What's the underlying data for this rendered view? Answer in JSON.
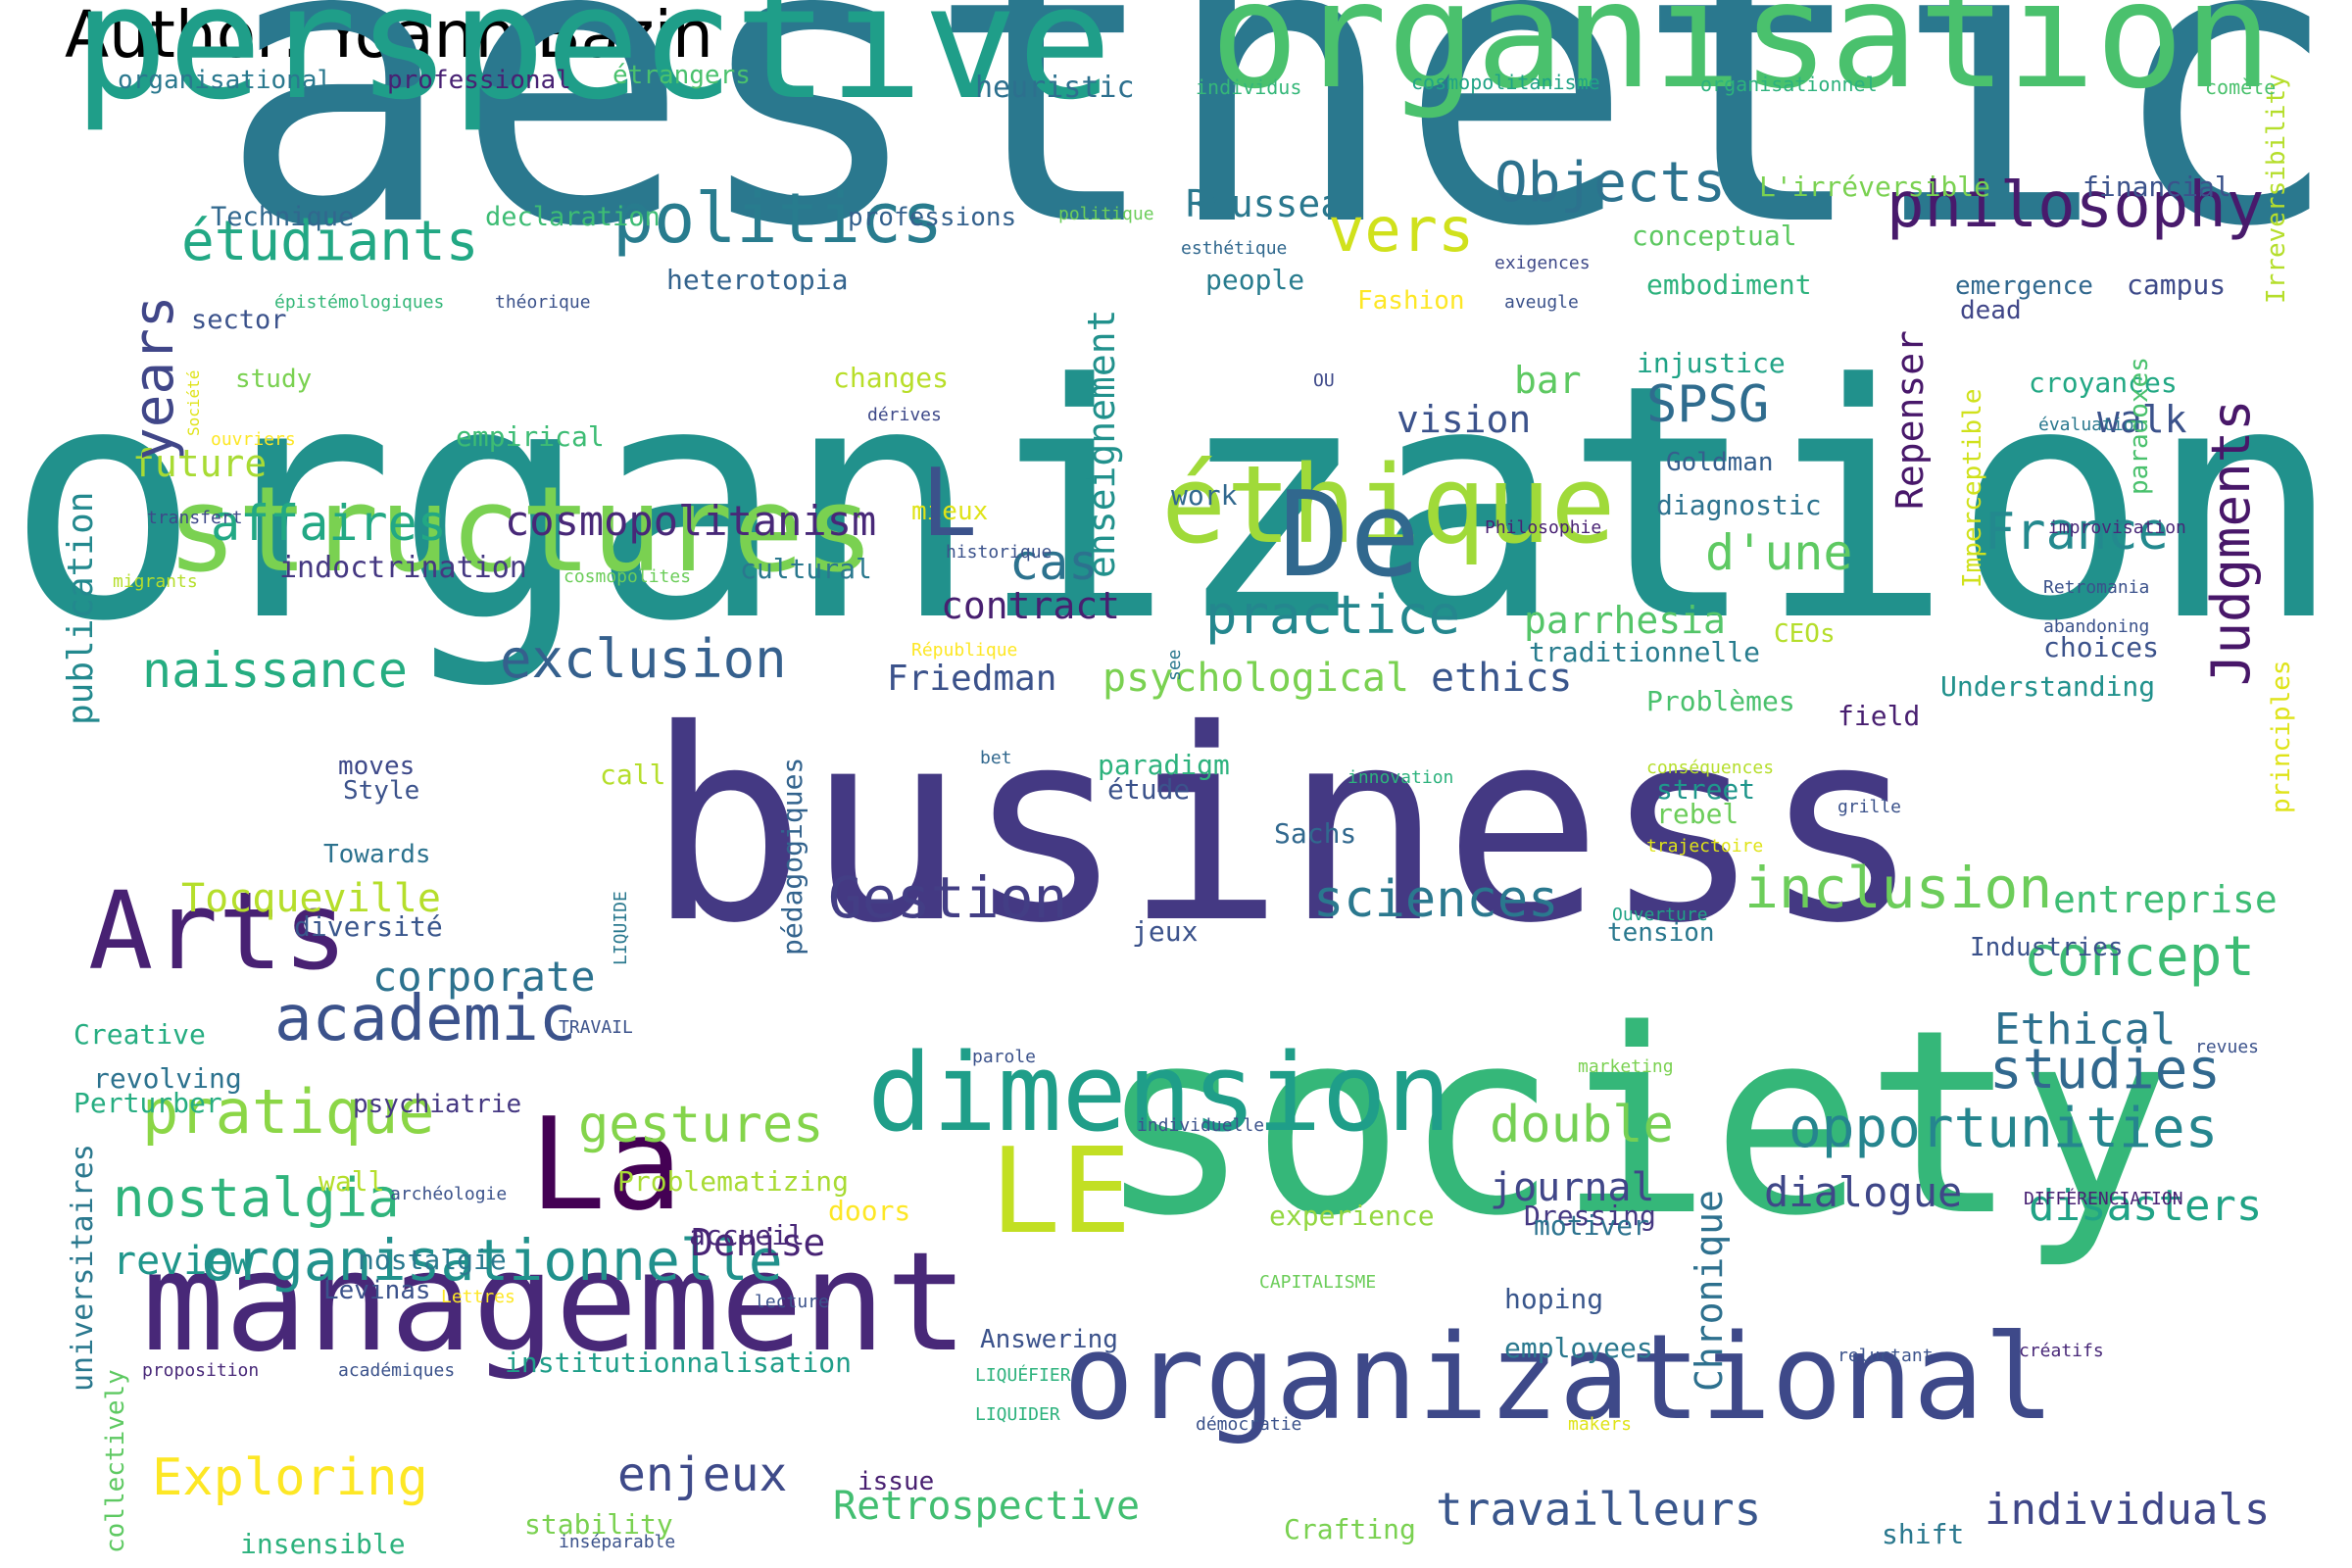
{
  "header": {
    "author": "Author: Yoann Bazin"
  },
  "words": [
    {
      "text": "aesthetic",
      "color": "#2a788e"
    },
    {
      "text": "organization",
      "color": "#21918c"
    },
    {
      "text": "business",
      "color": "#443983"
    },
    {
      "text": "society",
      "color": "#35b779"
    },
    {
      "text": "perspective",
      "color": "#1f9e89"
    },
    {
      "text": "organisation",
      "color": "#4ac16d"
    },
    {
      "text": "management",
      "color": "#482878"
    },
    {
      "text": "organizational",
      "color": "#3e4989"
    },
    {
      "text": "structures",
      "color": "#7ad151"
    },
    {
      "text": "éthique",
      "color": "#a0da39"
    },
    {
      "text": "dimension",
      "color": "#1f9e89"
    },
    {
      "text": "Arts",
      "color": "#482173"
    },
    {
      "text": "La",
      "color": "#440154"
    },
    {
      "text": "LE",
      "color": "#c2df23"
    },
    {
      "text": "De",
      "color": "#31688e"
    },
    {
      "text": "politics",
      "color": "#287c8e"
    },
    {
      "text": "philosophy",
      "color": "#481a6c"
    },
    {
      "text": "vers",
      "color": "#d0e11c"
    },
    {
      "text": "Objects",
      "color": "#2c728e"
    },
    {
      "text": "étudiants",
      "color": "#22a884"
    },
    {
      "text": "academic",
      "color": "#3b528b"
    },
    {
      "text": "pratique",
      "color": "#8bd646"
    },
    {
      "text": "organisationnelle",
      "color": "#21918c"
    },
    {
      "text": "nostalgia",
      "color": "#2fb47c"
    },
    {
      "text": "opportunities",
      "color": "#25858e"
    },
    {
      "text": "Gestion",
      "color": "#433e85"
    },
    {
      "text": "inclusion",
      "color": "#6ccd5a"
    },
    {
      "text": "sciences",
      "color": "#2a788e"
    },
    {
      "text": "concept",
      "color": "#3dbc74"
    },
    {
      "text": "studies",
      "color": "#31688e"
    },
    {
      "text": "practice",
      "color": "#24878e"
    },
    {
      "text": "exclusion",
      "color": "#35608d"
    },
    {
      "text": "naissance",
      "color": "#26ad81"
    },
    {
      "text": "affaires",
      "color": "#22a884"
    },
    {
      "text": "cosmopolitanism",
      "color": "#482878"
    },
    {
      "text": "France",
      "color": "#23898e"
    },
    {
      "text": "d'une",
      "color": "#5ec962"
    },
    {
      "text": "cas",
      "color": "#2c728e"
    },
    {
      "text": "SPSG",
      "color": "#2f6c8e"
    },
    {
      "text": "Rousseau",
      "color": "#2a788e"
    },
    {
      "text": "parrhesia",
      "color": "#54c568"
    },
    {
      "text": "ethics",
      "color": "#39568c"
    },
    {
      "text": "psychological",
      "color": "#7ad151"
    },
    {
      "text": "gestures",
      "color": "#84d44b"
    },
    {
      "text": "double",
      "color": "#75d054"
    },
    {
      "text": "disasters",
      "color": "#20a386"
    },
    {
      "text": "dialogue",
      "color": "#3f4788"
    },
    {
      "text": "journal",
      "color": "#404688"
    },
    {
      "text": "review",
      "color": "#1f968b"
    },
    {
      "text": "Denise",
      "color": "#482475"
    },
    {
      "text": "Exploring",
      "color": "#fde725"
    },
    {
      "text": "enjeux",
      "color": "#3e4a89"
    },
    {
      "text": "travailleurs",
      "color": "#39568c"
    },
    {
      "text": "individuals",
      "color": "#3f4788"
    },
    {
      "text": "Retrospective",
      "color": "#42be71"
    },
    {
      "text": "corporate",
      "color": "#2c728e"
    },
    {
      "text": "Tocqueville",
      "color": "#b5de2b"
    },
    {
      "text": "entreprise",
      "color": "#3dbc74"
    },
    {
      "text": "Ethical",
      "color": "#2d708e"
    },
    {
      "text": "contract",
      "color": "#481f70"
    },
    {
      "text": "Friedman",
      "color": "#3b528b"
    },
    {
      "text": "indoctrination",
      "color": "#453882"
    },
    {
      "text": "future",
      "color": "#a8db34"
    },
    {
      "text": "publication",
      "color": "#23898e"
    },
    {
      "text": "years",
      "color": "#404688"
    },
    {
      "text": "Judgments",
      "color": "#481769"
    },
    {
      "text": "Repenser",
      "color": "#48186a"
    },
    {
      "text": "enseignement",
      "color": "#21918c"
    },
    {
      "text": "Chronique",
      "color": "#2d708e"
    },
    {
      "text": "heuristic",
      "color": "#2d708e"
    },
    {
      "text": "professional",
      "color": "#482173"
    },
    {
      "text": "organisational",
      "color": "#2a788e"
    },
    {
      "text": "étrangers",
      "color": "#4ac16d"
    },
    {
      "text": "Technique",
      "color": "#31688e"
    },
    {
      "text": "declaration",
      "color": "#3dbc74"
    },
    {
      "text": "professions",
      "color": "#34618d"
    },
    {
      "text": "heterotopia",
      "color": "#33638d"
    },
    {
      "text": "sector",
      "color": "#3b528b"
    },
    {
      "text": "study",
      "color": "#7ad151"
    },
    {
      "text": "empirical",
      "color": "#3dbc74"
    },
    {
      "text": "changes",
      "color": "#b8de29"
    },
    {
      "text": "people",
      "color": "#287c8e"
    },
    {
      "text": "Fashion",
      "color": "#fde725"
    },
    {
      "text": "conceptual",
      "color": "#5ec962"
    },
    {
      "text": "embodiment",
      "color": "#2db27d"
    },
    {
      "text": "injustice",
      "color": "#20a386"
    },
    {
      "text": "Goldman",
      "color": "#355f8d"
    },
    {
      "text": "diagnostic",
      "color": "#2c728e"
    },
    {
      "text": "vision",
      "color": "#3b528b"
    },
    {
      "text": "walk",
      "color": "#3b528b"
    },
    {
      "text": "work",
      "color": "#31688e"
    },
    {
      "text": "bar",
      "color": "#5ec962"
    },
    {
      "text": "croyances",
      "color": "#22a884"
    },
    {
      "text": "campus",
      "color": "#3e4a89"
    },
    {
      "text": "emergence",
      "color": "#31688e"
    },
    {
      "text": "dead",
      "color": "#404688"
    },
    {
      "text": "financial",
      "color": "#3b528b"
    },
    {
      "text": "L'irréversible",
      "color": "#7ad151"
    },
    {
      "text": "traditionnelle",
      "color": "#287c8e"
    },
    {
      "text": "CEOs",
      "color": "#b5de2b"
    },
    {
      "text": "Problèmes",
      "color": "#4ac16d"
    },
    {
      "text": "field",
      "color": "#481f70"
    },
    {
      "text": "Understanding",
      "color": "#21918c"
    },
    {
      "text": "choices",
      "color": "#3b528b"
    },
    {
      "text": "cultural",
      "color": "#2a788e"
    },
    {
      "text": "mieux",
      "color": "#dfe318"
    },
    {
      "text": "moves",
      "color": "#3e4989"
    },
    {
      "text": "Style",
      "color": "#3b528b"
    },
    {
      "text": "Towards",
      "color": "#2c728e"
    },
    {
      "text": "call",
      "color": "#b5de2b"
    },
    {
      "text": "paradigm",
      "color": "#2db27d"
    },
    {
      "text": "étude",
      "color": "#3b528b"
    },
    {
      "text": "Sachs",
      "color": "#31688e"
    },
    {
      "text": "street",
      "color": "#1f968b"
    },
    {
      "text": "rebel",
      "color": "#6ccd5a"
    },
    {
      "text": "tension",
      "color": "#2a788e"
    },
    {
      "text": "jeux",
      "color": "#3b528b"
    },
    {
      "text": "diversité",
      "color": "#39568c"
    },
    {
      "text": "Industries",
      "color": "#3b528b"
    },
    {
      "text": "Creative",
      "color": "#26ad81"
    },
    {
      "text": "revolving",
      "color": "#2c728e"
    },
    {
      "text": "Perturber",
      "color": "#26ad81"
    },
    {
      "text": "psychiatrie",
      "color": "#453882"
    },
    {
      "text": "wall",
      "color": "#b5de2b"
    },
    {
      "text": "Problematizing",
      "color": "#a8db34"
    },
    {
      "text": "accueil",
      "color": "#482878"
    },
    {
      "text": "doors",
      "color": "#fde725"
    },
    {
      "text": "experience",
      "color": "#93d741"
    },
    {
      "text": "Dressing",
      "color": "#453882"
    },
    {
      "text": "motiver",
      "color": "#2c728e"
    },
    {
      "text": "nostalgie",
      "color": "#2a788e"
    },
    {
      "text": "Levinas",
      "color": "#3b528b"
    },
    {
      "text": "hoping",
      "color": "#39568c"
    },
    {
      "text": "employees",
      "color": "#2a788e"
    },
    {
      "text": "Answering",
      "color": "#3b528b"
    },
    {
      "text": "institutionnalisation",
      "color": "#1f9e89"
    },
    {
      "text": "issue",
      "color": "#481f70"
    },
    {
      "text": "stability",
      "color": "#7ad151"
    },
    {
      "text": "shift",
      "color": "#2a788e"
    },
    {
      "text": "Crafting",
      "color": "#7ad151"
    },
    {
      "text": "insensible",
      "color": "#2db27d"
    },
    {
      "text": "universitaires",
      "color": "#2a788e"
    },
    {
      "text": "collectively",
      "color": "#5ec962"
    },
    {
      "text": "pédagogiques",
      "color": "#33638d"
    },
    {
      "text": "Irreversibility",
      "color": "#b5de2b"
    },
    {
      "text": "paradoxes",
      "color": "#4ac16d"
    },
    {
      "text": "principles",
      "color": "#dfe318"
    },
    {
      "text": "Imperceptible",
      "color": "#d0e11c"
    },
    {
      "text": "individus",
      "color": "#35b779"
    },
    {
      "text": "cosmopolitanisme",
      "color": "#20a386"
    },
    {
      "text": "organisationnel",
      "color": "#2db27d"
    },
    {
      "text": "comète",
      "color": "#4ac16d"
    },
    {
      "text": "politique",
      "color": "#6ccd5a"
    },
    {
      "text": "esthétique",
      "color": "#31688e"
    },
    {
      "text": "exigences",
      "color": "#3e4989"
    },
    {
      "text": "aveugle",
      "color": "#3b528b"
    },
    {
      "text": "épistémologiques",
      "color": "#35b779"
    },
    {
      "text": "théorique",
      "color": "#3b528b"
    },
    {
      "text": "Société",
      "color": "#dfe318"
    },
    {
      "text": "ouvriers",
      "color": "#fde725"
    },
    {
      "text": "transfert",
      "color": "#3e4989"
    },
    {
      "text": "migrants",
      "color": "#b5de2b"
    },
    {
      "text": "historique",
      "color": "#3b528b"
    },
    {
      "text": "cosmopolites",
      "color": "#6ccd5a"
    },
    {
      "text": "République",
      "color": "#fde725"
    },
    {
      "text": "dérives",
      "color": "#3e4989"
    },
    {
      "text": "OU",
      "color": "#3e4989"
    },
    {
      "text": "évaluation",
      "color": "#2a788e"
    },
    {
      "text": "improvisation",
      "color": "#482878"
    },
    {
      "text": "Philosophie",
      "color": "#482173"
    },
    {
      "text": "Retromania",
      "color": "#3b528b"
    },
    {
      "text": "abandoning",
      "color": "#3b528b"
    },
    {
      "text": "see",
      "color": "#2a788e"
    },
    {
      "text": "bet",
      "color": "#31688e"
    },
    {
      "text": "innovation",
      "color": "#2db27d"
    },
    {
      "text": "conséquences",
      "color": "#b5de2b"
    },
    {
      "text": "trajectoire",
      "color": "#dfe318"
    },
    {
      "text": "grille",
      "color": "#3b528b"
    },
    {
      "text": "Ouverture",
      "color": "#20a386"
    },
    {
      "text": "LIQUIDE",
      "color": "#2a788e"
    },
    {
      "text": "TRAVAIL",
      "color": "#3b528b"
    },
    {
      "text": "parole",
      "color": "#3b528b"
    },
    {
      "text": "marketing",
      "color": "#7ad151"
    },
    {
      "text": "revues",
      "color": "#3b528b"
    },
    {
      "text": "individuelle",
      "color": "#3b528b"
    },
    {
      "text": "archéologie",
      "color": "#3b528b"
    },
    {
      "text": "DIFFÉRENCIATION",
      "color": "#482173"
    },
    {
      "text": "CAPITALISME",
      "color": "#6ccd5a"
    },
    {
      "text": "Lettres",
      "color": "#fde725"
    },
    {
      "text": "lecture",
      "color": "#3b528b"
    },
    {
      "text": "proposition",
      "color": "#482878"
    },
    {
      "text": "académiques",
      "color": "#3b528b"
    },
    {
      "text": "LIQUÉFIER",
      "color": "#2db27d"
    },
    {
      "text": "LIQUIDER",
      "color": "#2db27d"
    },
    {
      "text": "démocratie",
      "color": "#3b528b"
    },
    {
      "text": "makers",
      "color": "#dfe318"
    },
    {
      "text": "reluctant",
      "color": "#3b528b"
    },
    {
      "text": "créatifs",
      "color": "#482878"
    },
    {
      "text": "inséparable",
      "color": "#3b528b"
    },
    {
      "text": "L",
      "color": "#3b528b"
    }
  ]
}
